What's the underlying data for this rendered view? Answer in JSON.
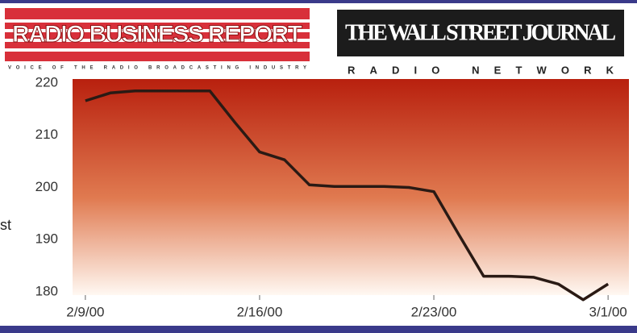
{
  "header": {
    "left_logo": "RADIO BUSINESS REPORT",
    "left_tagline": "VOICE OF THE RADIO BROADCASTING INDUSTRY",
    "right_logo": "THE WALL STREET JOURNAL",
    "right_subtitle": "RADIO NETWORK"
  },
  "chart_data": {
    "type": "line",
    "ylabel": "st",
    "x": [
      "2000-02-09",
      "2000-02-10",
      "2000-02-11",
      "2000-02-12",
      "2000-02-13",
      "2000-02-14",
      "2000-02-15",
      "2000-02-16",
      "2000-02-17",
      "2000-02-18",
      "2000-02-19",
      "2000-02-20",
      "2000-02-21",
      "2000-02-22",
      "2000-02-23",
      "2000-02-24",
      "2000-02-25",
      "2000-02-26",
      "2000-02-27",
      "2000-02-28",
      "2000-02-29",
      "2000-03-01"
    ],
    "series": [
      {
        "name": null,
        "color": "#2a1a14",
        "values": [
          216.6,
          218.1,
          218.5,
          218.5,
          218.5,
          218.5,
          212.5,
          206.8,
          205.3,
          200.5,
          200.2,
          200.2,
          200.2,
          200,
          199.2,
          191,
          183,
          183,
          182.8,
          181.5,
          178.5,
          181.5
        ]
      }
    ],
    "xlim": [
      "2000-02-08",
      "2000-03-02"
    ],
    "xticks": [
      {
        "value": "2000-02-09",
        "label": "2/9/00"
      },
      {
        "value": "2000-02-16",
        "label": "2/16/00"
      },
      {
        "value": "2000-02-23",
        "label": "2/23/00"
      },
      {
        "value": "2000-03-01",
        "label": "3/1/00"
      }
    ],
    "ylim": [
      180,
      220
    ],
    "yticks": [
      180,
      190,
      200,
      210,
      220
    ],
    "grid": false
  }
}
